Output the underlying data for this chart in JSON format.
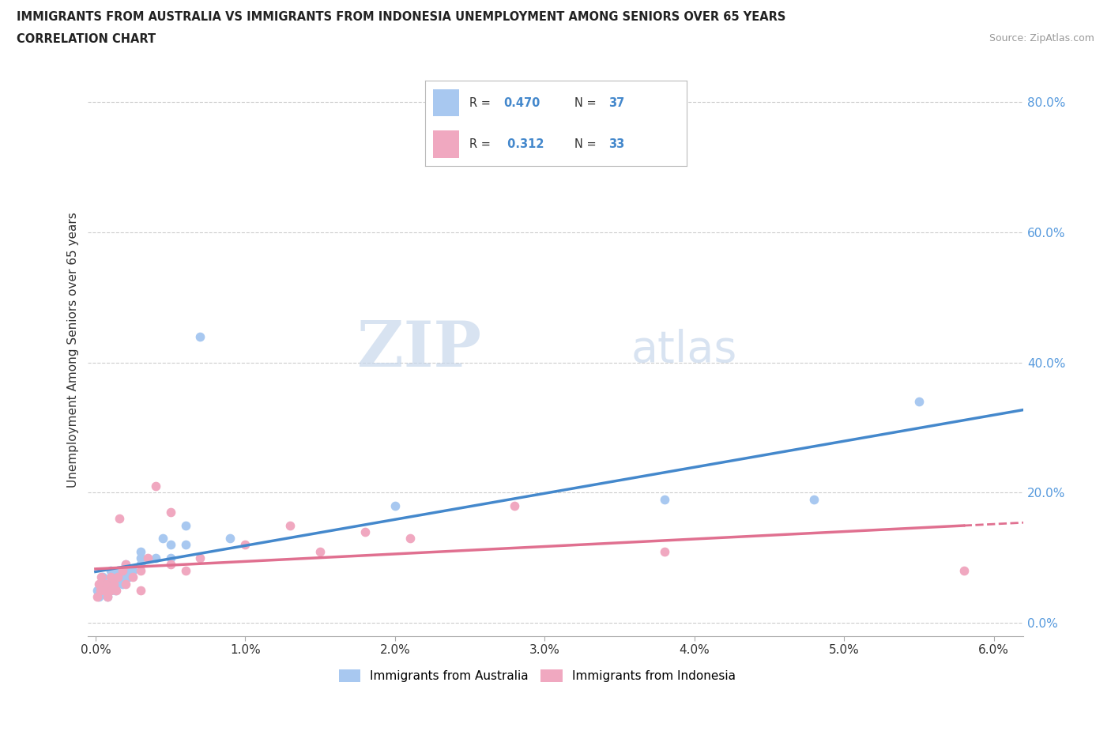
{
  "title_line1": "IMMIGRANTS FROM AUSTRALIA VS IMMIGRANTS FROM INDONESIA UNEMPLOYMENT AMONG SENIORS OVER 65 YEARS",
  "title_line2": "CORRELATION CHART",
  "source": "Source: ZipAtlas.com",
  "ylabel": "Unemployment Among Seniors over 65 years",
  "watermark_zip": "ZIP",
  "watermark_atlas": "atlas",
  "australia_R": 0.47,
  "australia_N": 37,
  "indonesia_R": 0.312,
  "indonesia_N": 33,
  "xlim": [
    -0.0005,
    0.062
  ],
  "ylim": [
    -0.02,
    0.86
  ],
  "xticks": [
    0.0,
    0.01,
    0.02,
    0.03,
    0.04,
    0.05,
    0.06
  ],
  "xticklabels": [
    "0.0%",
    "1.0%",
    "2.0%",
    "3.0%",
    "4.0%",
    "5.0%",
    "6.0%"
  ],
  "yticks": [
    0.0,
    0.2,
    0.4,
    0.6,
    0.8
  ],
  "yticklabels": [
    "0.0%",
    "20.0%",
    "40.0%",
    "60.0%",
    "80.0%"
  ],
  "australia_color": "#a8c8f0",
  "indonesia_color": "#f0a8c0",
  "australia_line_color": "#4488cc",
  "indonesia_line_color": "#e07090",
  "background_color": "#ffffff",
  "grid_color": "#cccccc",
  "legend_border_color": "#bbbbbb",
  "tick_label_color": "#5599dd",
  "australia_x": [
    0.0001,
    0.0002,
    0.0003,
    0.0004,
    0.0005,
    0.0006,
    0.0007,
    0.0008,
    0.001,
    0.001,
    0.001,
    0.0012,
    0.0013,
    0.0014,
    0.0015,
    0.0016,
    0.0018,
    0.002,
    0.002,
    0.002,
    0.0022,
    0.0025,
    0.003,
    0.003,
    0.003,
    0.004,
    0.0045,
    0.005,
    0.005,
    0.006,
    0.006,
    0.007,
    0.009,
    0.02,
    0.038,
    0.048,
    0.055
  ],
  "australia_y": [
    0.05,
    0.04,
    0.06,
    0.05,
    0.07,
    0.05,
    0.06,
    0.04,
    0.06,
    0.08,
    0.05,
    0.07,
    0.05,
    0.06,
    0.08,
    0.07,
    0.06,
    0.07,
    0.09,
    0.08,
    0.07,
    0.08,
    0.1,
    0.09,
    0.11,
    0.1,
    0.13,
    0.12,
    0.1,
    0.15,
    0.12,
    0.44,
    0.13,
    0.18,
    0.19,
    0.19,
    0.34
  ],
  "indonesia_x": [
    0.0001,
    0.0002,
    0.0003,
    0.0004,
    0.0006,
    0.0007,
    0.0008,
    0.001,
    0.001,
    0.0012,
    0.0014,
    0.0015,
    0.0016,
    0.0018,
    0.002,
    0.002,
    0.0025,
    0.003,
    0.003,
    0.0035,
    0.004,
    0.005,
    0.005,
    0.006,
    0.007,
    0.01,
    0.013,
    0.015,
    0.018,
    0.021,
    0.028,
    0.038,
    0.058
  ],
  "indonesia_y": [
    0.04,
    0.06,
    0.05,
    0.07,
    0.05,
    0.06,
    0.04,
    0.07,
    0.05,
    0.06,
    0.05,
    0.07,
    0.16,
    0.08,
    0.06,
    0.09,
    0.07,
    0.08,
    0.05,
    0.1,
    0.21,
    0.09,
    0.17,
    0.08,
    0.1,
    0.12,
    0.15,
    0.11,
    0.14,
    0.13,
    0.18,
    0.11,
    0.08
  ]
}
